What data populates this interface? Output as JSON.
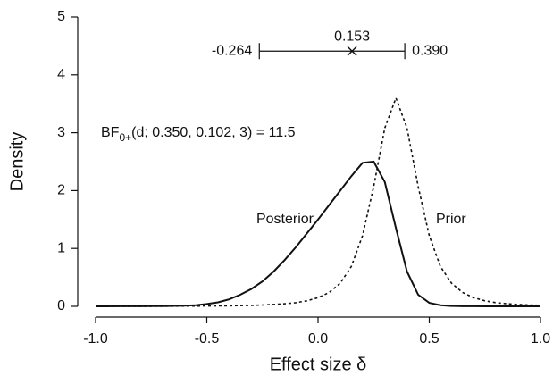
{
  "chart_data": {
    "type": "line",
    "x_label": "Effect size δ",
    "y_label": "Density",
    "xlim": [
      -1,
      1
    ],
    "ylim": [
      0,
      5
    ],
    "xticks": [
      {
        "value": -1,
        "label": "-1.0"
      },
      {
        "value": -0.5,
        "label": "-0.5"
      },
      {
        "value": 0,
        "label": "0.0"
      },
      {
        "value": 0.5,
        "label": "0.5"
      },
      {
        "value": 1,
        "label": "1.0"
      }
    ],
    "yticks": [
      0,
      1,
      2,
      3,
      4,
      5
    ],
    "grid": false,
    "x": [
      -1,
      -0.95,
      -0.9,
      -0.85,
      -0.8,
      -0.75,
      -0.7,
      -0.65,
      -0.6,
      -0.55,
      -0.5,
      -0.45,
      -0.4,
      -0.35,
      -0.3,
      -0.25,
      -0.2,
      -0.15,
      -0.1,
      -0.05,
      0,
      0.05,
      0.1,
      0.15,
      0.2,
      0.25,
      0.3,
      0.35,
      0.4,
      0.45,
      0.5,
      0.55,
      0.6,
      0.65,
      0.7,
      0.75,
      0.8,
      0.85,
      0.9,
      0.95,
      1
    ],
    "series": [
      {
        "name": "Posterior",
        "color": "#111111",
        "dash": "solid",
        "values": [
          0,
          0,
          0.001,
          0.001,
          0.002,
          0.003,
          0.005,
          0.008,
          0.013,
          0.02,
          0.04,
          0.07,
          0.12,
          0.2,
          0.3,
          0.43,
          0.6,
          0.8,
          1.02,
          1.26,
          1.5,
          1.75,
          2.0,
          2.25,
          2.48,
          2.5,
          2.15,
          1.35,
          0.6,
          0.2,
          0.06,
          0.02,
          0.006,
          0.002,
          0.001,
          0,
          0,
          0,
          0,
          0,
          0
        ]
      },
      {
        "name": "Prior",
        "color": "#111111",
        "dash": "dashed",
        "values": [
          0.001,
          0.0012,
          0.0014,
          0.0016,
          0.0019,
          0.0023,
          0.0027,
          0.0033,
          0.004,
          0.005,
          0.0062,
          0.0078,
          0.01,
          0.013,
          0.017,
          0.023,
          0.032,
          0.044,
          0.064,
          0.096,
          0.149,
          0.239,
          0.4,
          0.69,
          1.22,
          2.07,
          3.08,
          3.6,
          3.08,
          2.07,
          1.22,
          0.69,
          0.4,
          0.239,
          0.149,
          0.096,
          0.064,
          0.044,
          0.032,
          0.023,
          0.017
        ]
      }
    ],
    "interval": {
      "lower": -0.264,
      "median": 0.153,
      "upper": {
        "value": 0.39,
        "label": "0.390"
      }
    },
    "annotation": {
      "prefix": "BF",
      "subscript": "0+",
      "text": "(d; 0.350, 0.102, 3) = 11.5"
    }
  }
}
